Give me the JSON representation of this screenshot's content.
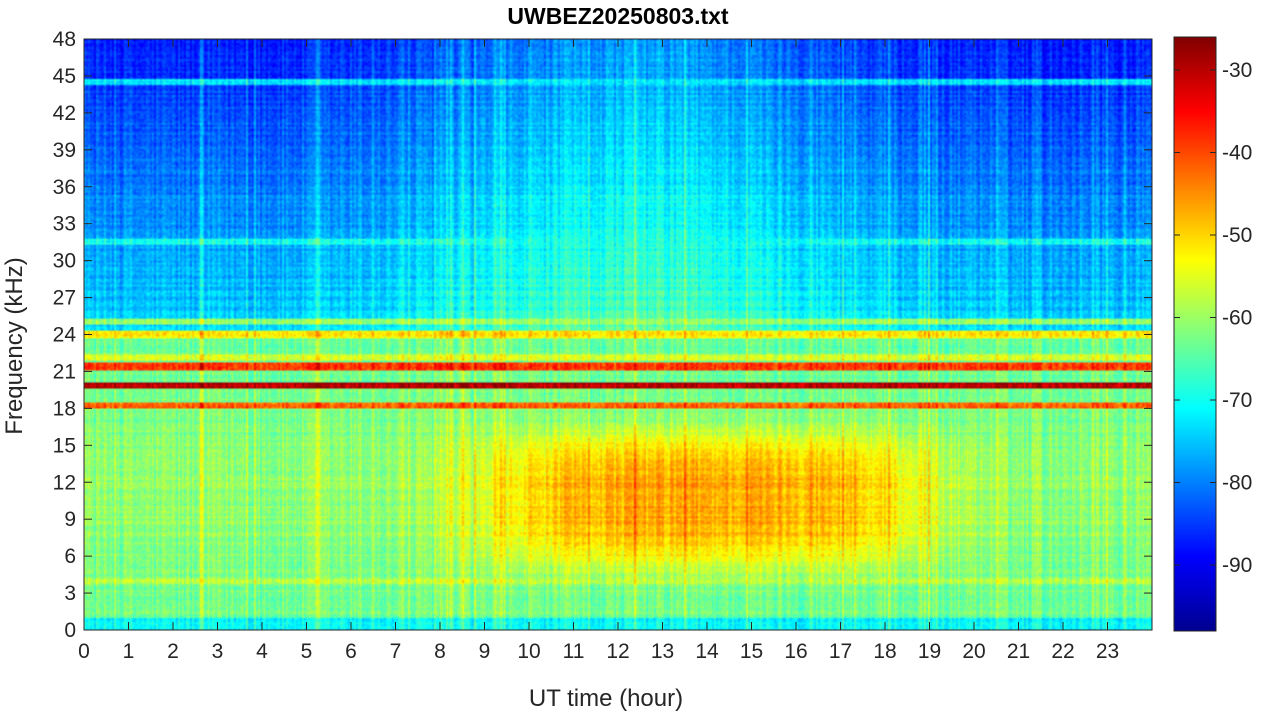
{
  "chart_data": {
    "type": "heatmap",
    "title": "UWBEZ20250803.txt",
    "xlabel": "UT time (hour)",
    "ylabel": "Frequency (kHz)",
    "xlim": [
      0,
      24
    ],
    "ylim": [
      0,
      48
    ],
    "x_ticks": [
      0,
      1,
      2,
      3,
      4,
      5,
      6,
      7,
      8,
      9,
      10,
      11,
      12,
      13,
      14,
      15,
      16,
      17,
      18,
      19,
      20,
      21,
      22,
      23
    ],
    "y_ticks": [
      0,
      3,
      6,
      9,
      12,
      15,
      18,
      21,
      24,
      27,
      30,
      33,
      36,
      39,
      42,
      45,
      48
    ],
    "colormap": "jet",
    "clim": [
      -98,
      -26
    ],
    "colorbar_ticks": [
      -30,
      -40,
      -50,
      -60,
      -70,
      -80,
      -90
    ],
    "colorbar_colors": [
      "#00008f",
      "#0000ff",
      "#0080ff",
      "#00ffff",
      "#80ff80",
      "#ffff00",
      "#ff8000",
      "#ff0000",
      "#800000"
    ],
    "narrowband_lines": [
      {
        "freq_khz": 19.8,
        "level_db": -30
      },
      {
        "freq_khz": 21.4,
        "level_db": -40
      },
      {
        "freq_khz": 18.2,
        "level_db": -42
      },
      {
        "freq_khz": 24.0,
        "level_db": -52
      },
      {
        "freq_khz": 25.0,
        "level_db": -60
      },
      {
        "freq_khz": 22.1,
        "level_db": -55
      },
      {
        "freq_khz": 4.0,
        "level_db": -58
      },
      {
        "freq_khz": 44.5,
        "level_db": -72
      },
      {
        "freq_khz": 31.5,
        "level_db": -70
      }
    ],
    "features": {
      "broadband_peak_freq_khz": [
        5,
        16
      ],
      "broadband_peak_time_h": [
        9,
        19
      ],
      "broadband_peak_level_db": -45
    }
  }
}
